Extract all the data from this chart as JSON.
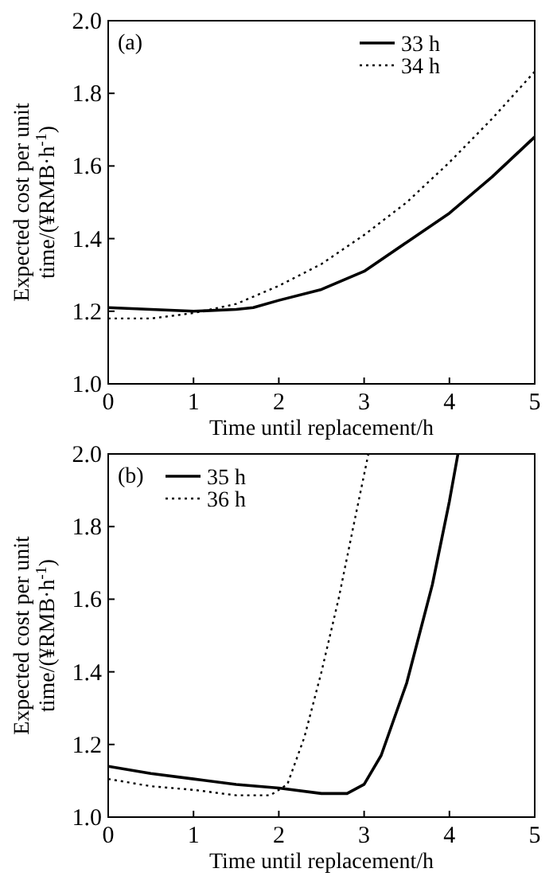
{
  "chart_data": [
    {
      "type": "line",
      "annotations": [
        "(a)"
      ],
      "xlabel": "Time until replacement/h",
      "ylabel": "Expected cost per unit\ntime/(¥RMB·h$^{-1}$)",
      "xlim": [
        0,
        5
      ],
      "ylim": [
        1,
        2
      ],
      "xticks": [
        0,
        1,
        2,
        3,
        4,
        5
      ],
      "yticks": [
        {
          "value": 1,
          "label": "1.0"
        },
        {
          "value": 1.2,
          "label": "1.2"
        },
        {
          "value": 1.4,
          "label": "1.4"
        },
        {
          "value": 1.6,
          "label": "1.6"
        },
        {
          "value": 1.8,
          "label": "1.8"
        },
        {
          "value": 2,
          "label": "2.0"
        }
      ],
      "legend": "top right",
      "grid": false,
      "series": [
        {
          "name": "33 h",
          "color": "#000000",
          "line_style": "solid",
          "x": [
            0,
            0.5,
            1,
            1.5,
            1.7,
            2,
            2.5,
            3,
            3.5,
            4,
            4.5,
            5
          ],
          "values": [
            1.21,
            1.205,
            1.2,
            1.205,
            1.21,
            1.23,
            1.26,
            1.31,
            1.39,
            1.47,
            1.57,
            1.68
          ]
        },
        {
          "name": "34 h",
          "color": "#000000",
          "line_style": "dotted",
          "x": [
            0,
            0.5,
            1,
            1.5,
            2,
            2.5,
            3,
            3.5,
            4,
            4.5,
            5
          ],
          "values": [
            1.18,
            1.18,
            1.195,
            1.22,
            1.27,
            1.33,
            1.41,
            1.5,
            1.61,
            1.73,
            1.86
          ]
        }
      ]
    },
    {
      "type": "line",
      "annotations": [
        "(b)"
      ],
      "xlabel": "Time until replacement/h",
      "ylabel": "Expected cost per unit\ntime/(¥RMB·h$^{-1}$)",
      "xlim": [
        0,
        5
      ],
      "ylim": [
        1,
        2
      ],
      "xticks": [
        0,
        1,
        2,
        3,
        4,
        5
      ],
      "yticks": [
        {
          "value": 1,
          "label": "1.0"
        },
        {
          "value": 1.2,
          "label": "1.2"
        },
        {
          "value": 1.4,
          "label": "1.4"
        },
        {
          "value": 1.6,
          "label": "1.6"
        },
        {
          "value": 1.8,
          "label": "1.8"
        },
        {
          "value": 2,
          "label": "2.0"
        }
      ],
      "legend": "top left",
      "grid": false,
      "series": [
        {
          "name": "35 h",
          "color": "#000000",
          "line_style": "solid",
          "x": [
            0,
            0.5,
            1,
            1.5,
            2,
            2.5,
            2.8,
            3,
            3.2,
            3.5,
            3.8,
            4,
            4.1
          ],
          "values": [
            1.14,
            1.12,
            1.105,
            1.09,
            1.08,
            1.065,
            1.065,
            1.09,
            1.17,
            1.37,
            1.64,
            1.87,
            2.0
          ]
        },
        {
          "name": "36 h",
          "color": "#000000",
          "line_style": "dotted",
          "x": [
            0,
            0.5,
            1,
            1.5,
            1.9,
            2.1,
            2.3,
            2.5,
            2.7,
            2.9,
            3.05
          ],
          "values": [
            1.105,
            1.085,
            1.075,
            1.06,
            1.06,
            1.09,
            1.22,
            1.4,
            1.6,
            1.83,
            2.0
          ]
        }
      ]
    }
  ]
}
